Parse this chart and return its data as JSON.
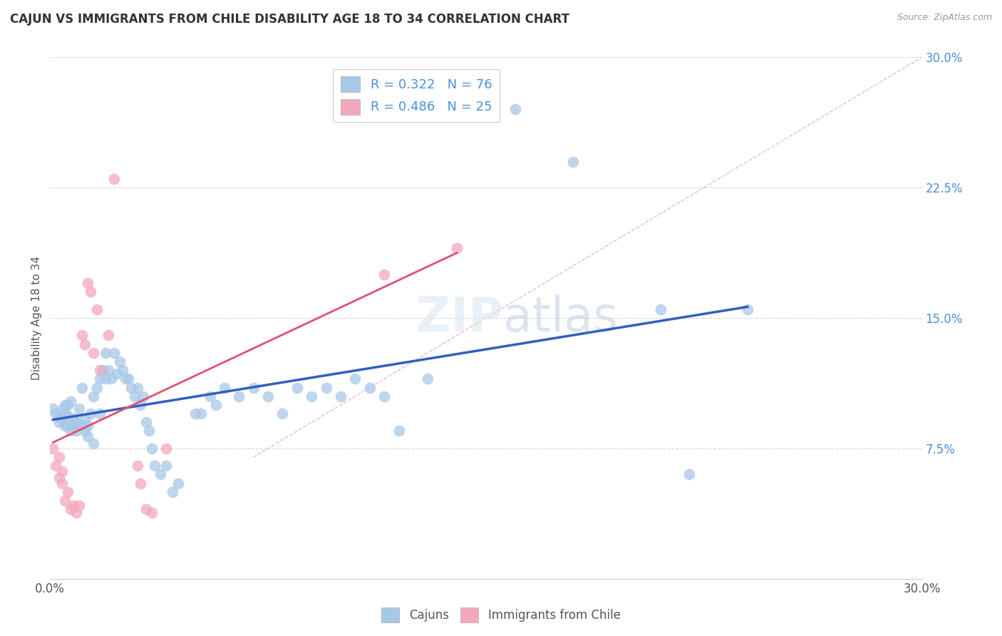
{
  "title": "CAJUN VS IMMIGRANTS FROM CHILE DISABILITY AGE 18 TO 34 CORRELATION CHART",
  "source": "Source: ZipAtlas.com",
  "ylabel": "Disability Age 18 to 34",
  "xlim": [
    0.0,
    0.3
  ],
  "ylim": [
    0.0,
    0.3
  ],
  "cajun_color": "#a8c8e8",
  "chile_color": "#f4a8bc",
  "cajun_line_color": "#3060c0",
  "chile_line_color": "#e05070",
  "diagonal_color": "#e8a0b0",
  "background_color": "#ffffff",
  "grid_color": "#d8d8d8",
  "cajun_scatter": [
    [
      0.001,
      0.098
    ],
    [
      0.002,
      0.095
    ],
    [
      0.003,
      0.093
    ],
    [
      0.003,
      0.09
    ],
    [
      0.004,
      0.097
    ],
    [
      0.004,
      0.092
    ],
    [
      0.005,
      0.088
    ],
    [
      0.005,
      0.095
    ],
    [
      0.005,
      0.1
    ],
    [
      0.006,
      0.1
    ],
    [
      0.006,
      0.094
    ],
    [
      0.006,
      0.088
    ],
    [
      0.007,
      0.102
    ],
    [
      0.007,
      0.085
    ],
    [
      0.008,
      0.088
    ],
    [
      0.008,
      0.092
    ],
    [
      0.009,
      0.09
    ],
    [
      0.009,
      0.085
    ],
    [
      0.01,
      0.098
    ],
    [
      0.01,
      0.088
    ],
    [
      0.011,
      0.11
    ],
    [
      0.011,
      0.088
    ],
    [
      0.012,
      0.085
    ],
    [
      0.012,
      0.092
    ],
    [
      0.013,
      0.082
    ],
    [
      0.013,
      0.088
    ],
    [
      0.014,
      0.095
    ],
    [
      0.015,
      0.105
    ],
    [
      0.015,
      0.078
    ],
    [
      0.016,
      0.11
    ],
    [
      0.017,
      0.115
    ],
    [
      0.017,
      0.095
    ],
    [
      0.018,
      0.12
    ],
    [
      0.019,
      0.13
    ],
    [
      0.019,
      0.115
    ],
    [
      0.02,
      0.12
    ],
    [
      0.021,
      0.115
    ],
    [
      0.022,
      0.13
    ],
    [
      0.023,
      0.118
    ],
    [
      0.024,
      0.125
    ],
    [
      0.025,
      0.12
    ],
    [
      0.026,
      0.115
    ],
    [
      0.027,
      0.115
    ],
    [
      0.028,
      0.11
    ],
    [
      0.029,
      0.105
    ],
    [
      0.03,
      0.11
    ],
    [
      0.031,
      0.1
    ],
    [
      0.032,
      0.105
    ],
    [
      0.033,
      0.09
    ],
    [
      0.034,
      0.085
    ],
    [
      0.035,
      0.075
    ],
    [
      0.036,
      0.065
    ],
    [
      0.038,
      0.06
    ],
    [
      0.04,
      0.065
    ],
    [
      0.042,
      0.05
    ],
    [
      0.044,
      0.055
    ],
    [
      0.05,
      0.095
    ],
    [
      0.052,
      0.095
    ],
    [
      0.055,
      0.105
    ],
    [
      0.057,
      0.1
    ],
    [
      0.06,
      0.11
    ],
    [
      0.065,
      0.105
    ],
    [
      0.07,
      0.11
    ],
    [
      0.075,
      0.105
    ],
    [
      0.08,
      0.095
    ],
    [
      0.085,
      0.11
    ],
    [
      0.09,
      0.105
    ],
    [
      0.095,
      0.11
    ],
    [
      0.1,
      0.105
    ],
    [
      0.105,
      0.115
    ],
    [
      0.11,
      0.11
    ],
    [
      0.115,
      0.105
    ],
    [
      0.12,
      0.085
    ],
    [
      0.13,
      0.115
    ],
    [
      0.16,
      0.27
    ],
    [
      0.18,
      0.24
    ],
    [
      0.21,
      0.155
    ],
    [
      0.22,
      0.06
    ],
    [
      0.24,
      0.155
    ]
  ],
  "chile_scatter": [
    [
      0.001,
      0.075
    ],
    [
      0.002,
      0.065
    ],
    [
      0.003,
      0.058
    ],
    [
      0.003,
      0.07
    ],
    [
      0.004,
      0.062
    ],
    [
      0.004,
      0.055
    ],
    [
      0.005,
      0.045
    ],
    [
      0.006,
      0.05
    ],
    [
      0.007,
      0.04
    ],
    [
      0.008,
      0.042
    ],
    [
      0.009,
      0.038
    ],
    [
      0.01,
      0.042
    ],
    [
      0.011,
      0.14
    ],
    [
      0.012,
      0.135
    ],
    [
      0.013,
      0.17
    ],
    [
      0.014,
      0.165
    ],
    [
      0.015,
      0.13
    ],
    [
      0.016,
      0.155
    ],
    [
      0.017,
      0.12
    ],
    [
      0.02,
      0.14
    ],
    [
      0.022,
      0.23
    ],
    [
      0.03,
      0.065
    ],
    [
      0.031,
      0.055
    ],
    [
      0.033,
      0.04
    ],
    [
      0.035,
      0.038
    ],
    [
      0.04,
      0.075
    ],
    [
      0.115,
      0.175
    ],
    [
      0.14,
      0.19
    ]
  ]
}
